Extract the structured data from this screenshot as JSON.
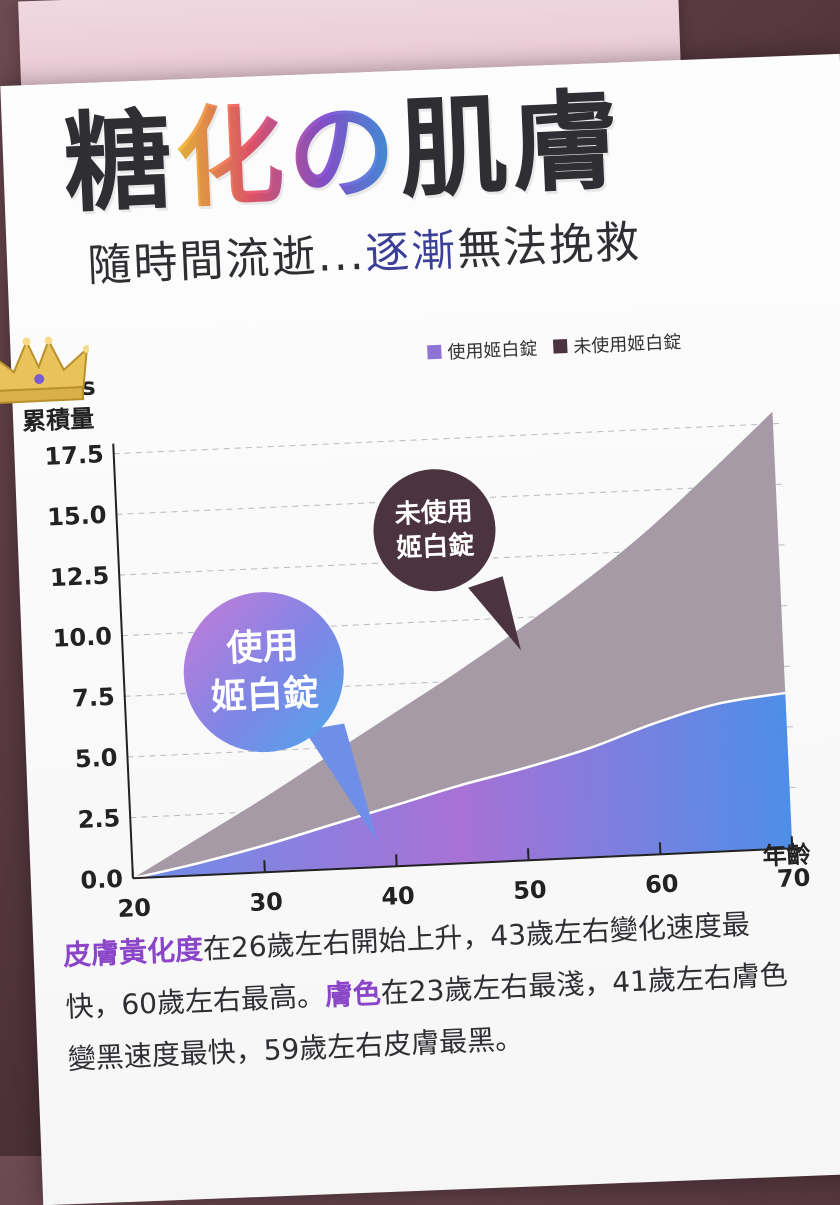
{
  "headline": {
    "part1": "糖",
    "highlight": "化の",
    "part2": "肌膚"
  },
  "subline": {
    "lead": "隨時間流逝...",
    "accent": "逐漸",
    "tail": "無法挽救"
  },
  "chart_data": {
    "type": "area",
    "ylabel_line1": "AGEs",
    "ylabel_line2": "累積量",
    "xlabel": "年齡",
    "xlim": [
      20,
      70
    ],
    "ylim": [
      0,
      17.5
    ],
    "x_ticks": [
      "20",
      "30",
      "40",
      "50",
      "60",
      "70"
    ],
    "y_ticks": [
      "17.5",
      "15.0",
      "12.5",
      "10.0",
      "7.5",
      "5.0",
      "2.5",
      "0.0"
    ],
    "x": [
      20,
      25,
      30,
      35,
      40,
      45,
      50,
      55,
      60,
      65,
      70
    ],
    "series": [
      {
        "name": "使用姬白錠",
        "values": [
          0.0,
          0.5,
          1.1,
          1.8,
          2.5,
          3.2,
          3.8,
          4.5,
          5.4,
          6.1,
          6.4
        ]
      },
      {
        "name": "未使用姬白錠",
        "values": [
          0.0,
          1.5,
          3.0,
          4.6,
          6.2,
          7.8,
          9.5,
          11.3,
          13.3,
          15.6,
          18.0
        ]
      }
    ],
    "grid": true,
    "legend": "top-right",
    "colors": {
      "treated": "#8f72d6",
      "untreated": "#a79ba8"
    }
  },
  "bubbles": {
    "untreated": "未使用\n姬白錠",
    "treated": "使用\n姬白錠"
  },
  "body": {
    "em1": "皮膚黃化度",
    "t1": "在26歲左右開始上升，43歲左右變化速度最快，60歲左右最高。",
    "em2": "膚色",
    "t2": "在23歲左右最淺，41歲左右膚色變黑速度最快，59歲左右皮膚最黑。"
  }
}
